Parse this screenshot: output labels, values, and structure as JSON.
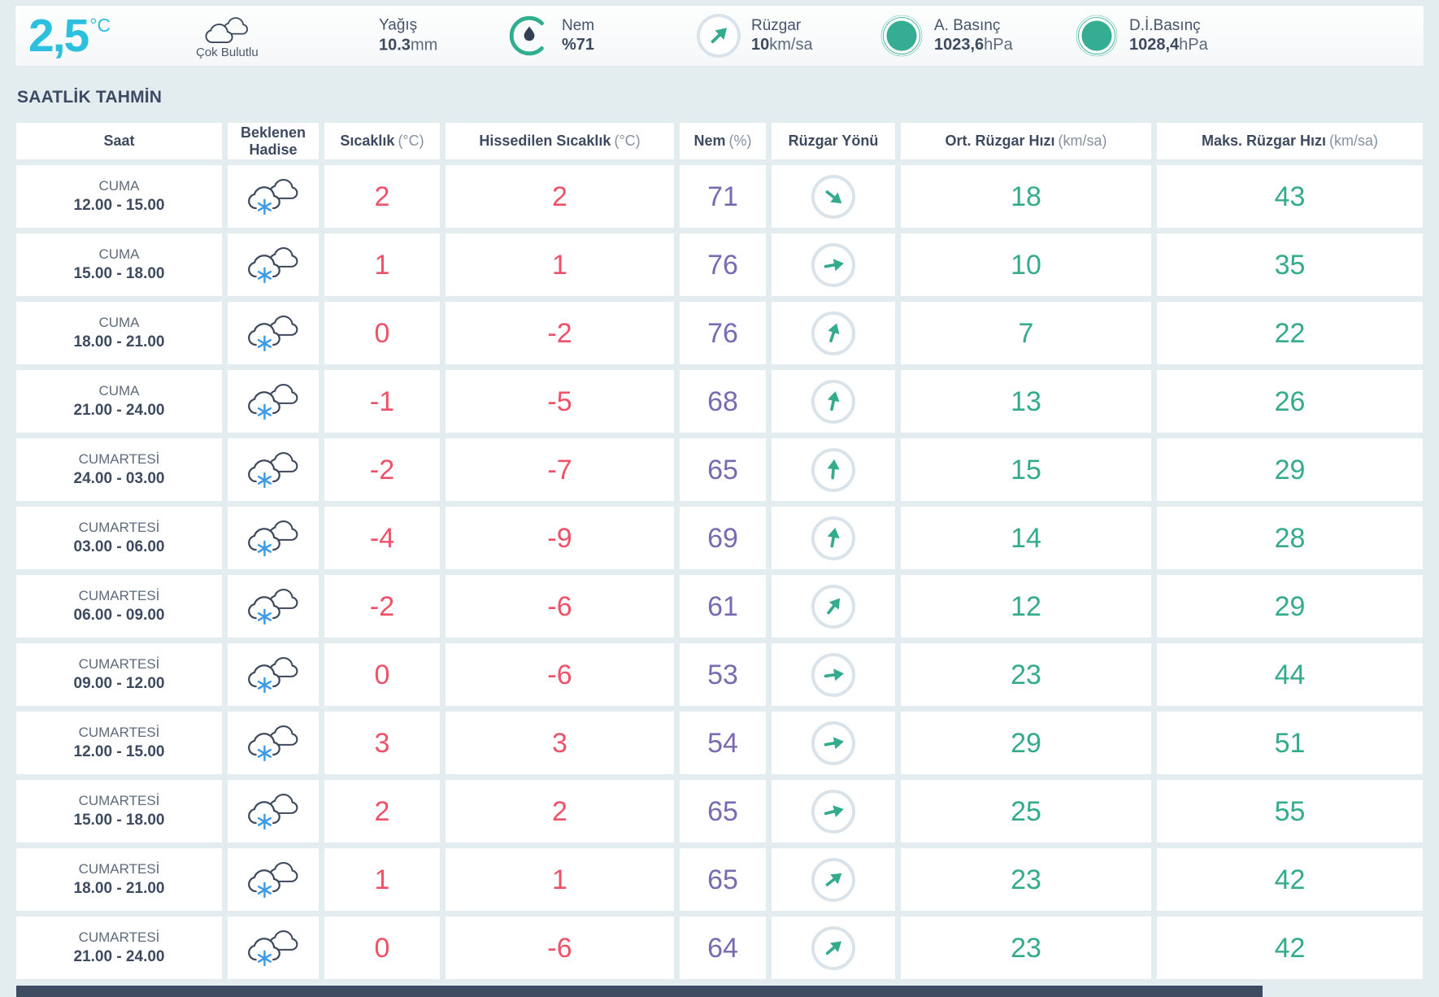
{
  "current": {
    "temperature": "2,5",
    "temperature_unit": "°C",
    "condition": "Çok Bulutlu",
    "precip": {
      "label": "Yağış",
      "value": "10.3",
      "unit": "mm"
    },
    "humidity": {
      "label": "Nem",
      "value": "%71",
      "unit": ""
    },
    "wind": {
      "label": "Rüzgar",
      "value": "10",
      "unit": "km/sa",
      "arrow_deg": -44
    },
    "pressure": {
      "label": "A. Basınç",
      "value": "1023,6",
      "unit": "hPa"
    },
    "sea_pressure": {
      "label": "D.İ.Basınç",
      "value": "1028,4",
      "unit": "hPa"
    }
  },
  "section_title": "SAATLİK TAHMİN",
  "table": {
    "columns": [
      {
        "label": "Saat",
        "unit": ""
      },
      {
        "label": "Beklenen Hadise",
        "unit": ""
      },
      {
        "label": "Sıcaklık",
        "unit": "(°C)"
      },
      {
        "label": "Hissedilen Sıcaklık",
        "unit": "(°C)"
      },
      {
        "label": "Nem",
        "unit": "(%)"
      },
      {
        "label": "Rüzgar Yönü",
        "unit": ""
      },
      {
        "label": "Ort. Rüzgar Hızı",
        "unit": "(km/sa)"
      },
      {
        "label": "Maks. Rüzgar Hızı",
        "unit": "(km/sa)"
      }
    ],
    "rows": [
      {
        "day": "CUMA",
        "time": "12.00 - 15.00",
        "icon": "snow-cloud-icon",
        "temp": "2",
        "feels": "2",
        "humidity": "71",
        "wind_deg": 38,
        "wind_avg": "18",
        "wind_max": "43"
      },
      {
        "day": "CUMA",
        "time": "15.00 - 18.00",
        "icon": "snow-cloud-icon",
        "temp": "1",
        "feels": "1",
        "humidity": "76",
        "wind_deg": -10,
        "wind_avg": "10",
        "wind_max": "35"
      },
      {
        "day": "CUMA",
        "time": "18.00 - 21.00",
        "icon": "snow-cloud-icon",
        "temp": "0",
        "feels": "-2",
        "humidity": "76",
        "wind_deg": -72,
        "wind_avg": "7",
        "wind_max": "22"
      },
      {
        "day": "CUMA",
        "time": "21.00 - 24.00",
        "icon": "snow-cloud-icon",
        "temp": "-1",
        "feels": "-5",
        "humidity": "68",
        "wind_deg": -78,
        "wind_avg": "13",
        "wind_max": "26"
      },
      {
        "day": "CUMARTESİ",
        "time": "24.00 - 03.00",
        "icon": "snow-cloud-icon",
        "temp": "-2",
        "feels": "-7",
        "humidity": "65",
        "wind_deg": -85,
        "wind_avg": "15",
        "wind_max": "29"
      },
      {
        "day": "CUMARTESİ",
        "time": "03.00 - 06.00",
        "icon": "snow-cloud-icon",
        "temp": "-4",
        "feels": "-9",
        "humidity": "69",
        "wind_deg": -80,
        "wind_avg": "14",
        "wind_max": "28"
      },
      {
        "day": "CUMARTESİ",
        "time": "06.00 - 09.00",
        "icon": "snow-cloud-icon",
        "temp": "-2",
        "feels": "-6",
        "humidity": "61",
        "wind_deg": -52,
        "wind_avg": "12",
        "wind_max": "29"
      },
      {
        "day": "CUMARTESİ",
        "time": "09.00 - 12.00",
        "icon": "snow-cloud-icon",
        "temp": "0",
        "feels": "-6",
        "humidity": "53",
        "wind_deg": -8,
        "wind_avg": "23",
        "wind_max": "44"
      },
      {
        "day": "CUMARTESİ",
        "time": "12.00 - 15.00",
        "icon": "snow-cloud-icon",
        "temp": "3",
        "feels": "3",
        "humidity": "54",
        "wind_deg": -10,
        "wind_avg": "29",
        "wind_max": "51"
      },
      {
        "day": "CUMARTESİ",
        "time": "15.00 - 18.00",
        "icon": "snow-cloud-icon",
        "temp": "2",
        "feels": "2",
        "humidity": "65",
        "wind_deg": -14,
        "wind_avg": "25",
        "wind_max": "55"
      },
      {
        "day": "CUMARTESİ",
        "time": "18.00 - 21.00",
        "icon": "snow-cloud-icon",
        "temp": "1",
        "feels": "1",
        "humidity": "65",
        "wind_deg": -38,
        "wind_avg": "23",
        "wind_max": "42"
      },
      {
        "day": "CUMARTESİ",
        "time": "21.00 - 24.00",
        "icon": "snow-cloud-icon",
        "temp": "0",
        "feels": "-6",
        "humidity": "64",
        "wind_deg": -40,
        "wind_avg": "23",
        "wind_max": "42"
      }
    ]
  },
  "colors": {
    "temp_cyan": "#2cc0de",
    "accent_teal": "#35ab8e",
    "temp_pink": "#ef5168",
    "humidity_purple": "#7a6ab2",
    "navy": "#3d4a5f",
    "page_background": "#e3edf0"
  }
}
